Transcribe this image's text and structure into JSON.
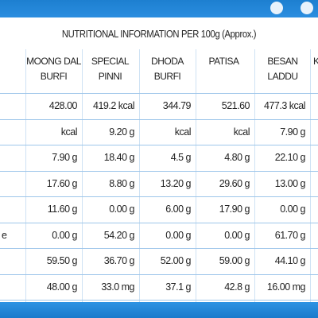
{
  "table": {
    "title": "NUTRITIONAL INFORMATION PER 100g (Approx.)",
    "columns": [
      "MOONG DAL\nBURFI",
      "SPECIAL\nPINNI",
      "DHODA\nBURFI",
      "PATISA",
      "BESAN\nLADDU",
      "K"
    ],
    "rows": [
      {
        "cells": [
          "428.00",
          "419.2 kcal",
          "344.79",
          "521.60",
          "477.3 kcal"
        ]
      },
      {
        "cells": [
          "kcal",
          "9.20 g",
          "kcal",
          "kcal",
          "7.90 g"
        ]
      },
      {
        "cells": [
          "7.90 g",
          "18.40 g",
          "4.5 g",
          "4.80 g",
          "22.10 g"
        ]
      },
      {
        "cells": [
          "17.60 g",
          "8.80 g",
          "13.20 g",
          "29.60 g",
          "13.00 g"
        ]
      },
      {
        "cells": [
          "11.60 g",
          "0.00 g",
          "6.00 g",
          "17.90 g",
          "0.00 g"
        ]
      },
      {
        "label": "e",
        "cells": [
          "0.00 g",
          "54.20 g",
          "0.00 g",
          "0.00 g",
          "61.70 g"
        ]
      },
      {
        "cells": [
          "59.50 g",
          "36.70 g",
          "52.00 g",
          "59.00 g",
          "44.10 g"
        ]
      },
      {
        "cells": [
          "48.00 g",
          "33.0 mg",
          "37.1 g",
          "42.8 g",
          "16.00 mg"
        ]
      }
    ]
  }
}
